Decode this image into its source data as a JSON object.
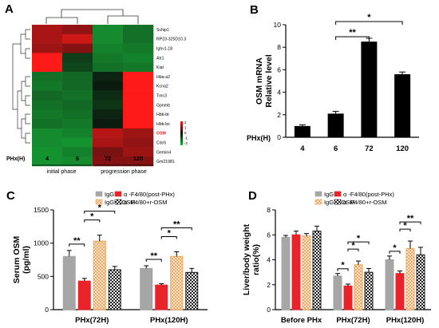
{
  "colors": {
    "igg": "#a6a6a6",
    "anti_f480": "#e8242a",
    "igg_rosm": "#f2a45a",
    "anti_f480_rosm": "#1a1a1a",
    "heat_low": "#18b43a",
    "heat_mid": "#0a0a0a",
    "heat_high": "#ff1a1a",
    "osm_label": "#e8242a"
  },
  "panels": [
    "A",
    "B",
    "C",
    "D"
  ],
  "chart_data": [
    {
      "panel": "A",
      "type": "heatmap",
      "rows": [
        "Schip1",
        "RP23-325D10.3",
        "Ighv1-18",
        "Atr1",
        "Kiat",
        "Hba-a2",
        "Kcna2",
        "Tmc3",
        "Gpnmb",
        "Hbb-bt",
        "Hbb-bs",
        "OSM",
        "Cdc6",
        "Gemin4",
        "Gm21981"
      ],
      "columns": [
        "4",
        "6",
        "72",
        "120"
      ],
      "column_axis_label": "PHx(H)",
      "groups": [
        "initial phase",
        "progression phase"
      ],
      "colorbar_ticks": [
        "2",
        "1",
        "0",
        "-1",
        "-2"
      ],
      "values": [
        [
          1.3,
          1.1,
          -1.5,
          -1.2
        ],
        [
          1.3,
          1.6,
          -1.5,
          -1.2
        ],
        [
          1.2,
          1.0,
          -1.4,
          -1.3
        ],
        [
          2.0,
          -0.6,
          -1.3,
          -1.4
        ],
        [
          2.0,
          -0.7,
          -1.2,
          -1.3
        ],
        [
          -1.2,
          -1.1,
          -0.3,
          2.0
        ],
        [
          -1.3,
          -1.1,
          -0.2,
          2.0
        ],
        [
          -1.1,
          -1.2,
          -0.4,
          2.0
        ],
        [
          -1.2,
          -1.1,
          -0.5,
          2.0
        ],
        [
          -1.3,
          -1.2,
          -0.3,
          2.0
        ],
        [
          -1.2,
          -1.3,
          -0.2,
          2.0
        ],
        [
          -1.5,
          -1.4,
          1.4,
          1.2
        ],
        [
          -1.5,
          -1.6,
          1.3,
          1.1
        ],
        [
          -1.6,
          -1.4,
          0.9,
          1.2
        ],
        [
          -1.6,
          -1.5,
          1.0,
          1.0
        ]
      ]
    },
    {
      "panel": "B",
      "type": "bar",
      "ylabel": "OSM mRNA\nRelative level",
      "xlabel": "PHx(H)",
      "categories": [
        "4",
        "6",
        "72",
        "120"
      ],
      "values": [
        1.0,
        2.1,
        8.5,
        5.6
      ],
      "errors": [
        0.1,
        0.2,
        0.3,
        0.2
      ],
      "ylim": [
        0,
        10
      ],
      "yticks": [
        "0",
        "2",
        "4",
        "6",
        "8",
        "10"
      ],
      "significance": [
        {
          "from": "6",
          "to": "72",
          "label": "**"
        },
        {
          "from": "6",
          "to": "120",
          "label": "*"
        }
      ]
    },
    {
      "panel": "C",
      "type": "bar",
      "ylabel": "Serum OSM\n(pg/ml)",
      "categories": [
        "PHx(72H)",
        "PHx(120H)"
      ],
      "series": [
        {
          "name": "IgG",
          "values": [
            800,
            620
          ],
          "errors": [
            90,
            40
          ]
        },
        {
          "name": "α -F4/80(post-PHx)",
          "values": [
            430,
            370
          ],
          "errors": [
            40,
            20
          ]
        },
        {
          "name": "IgG+r-OSM",
          "values": [
            1030,
            800
          ],
          "errors": [
            90,
            70
          ]
        },
        {
          "name": "α -F4/80+r-OSM",
          "values": [
            600,
            560
          ],
          "errors": [
            50,
            60
          ]
        }
      ],
      "ylim": [
        0,
        1500
      ],
      "yticks": [
        "0",
        "500",
        "1000",
        "1500"
      ],
      "significance": [
        {
          "group": 0,
          "from": 0,
          "to": 1,
          "label": "**"
        },
        {
          "group": 0,
          "from": 1,
          "to": 2,
          "label": "*"
        },
        {
          "group": 0,
          "from": 1,
          "to": 3,
          "label": "*"
        },
        {
          "group": 1,
          "from": 0,
          "to": 1,
          "label": "**"
        },
        {
          "group": 1,
          "from": 1,
          "to": 2,
          "label": "*"
        },
        {
          "group": 1,
          "from": 1,
          "to": 3,
          "label": "**"
        }
      ]
    },
    {
      "panel": "D",
      "type": "bar",
      "ylabel": "Liver/body weight\nratio(%)",
      "categories": [
        "Before PHx",
        "PHx(72H)",
        "PHx(120H)"
      ],
      "series": [
        {
          "name": "IgG",
          "values": [
            5.8,
            2.7,
            4.0
          ],
          "errors": [
            0.15,
            0.2,
            0.3
          ]
        },
        {
          "name": "α -F4/80(post-PHx)",
          "values": [
            6.0,
            1.9,
            2.9
          ],
          "errors": [
            0.3,
            0.15,
            0.2
          ]
        },
        {
          "name": "IgG+r-OSM",
          "values": [
            5.9,
            3.6,
            4.9
          ],
          "errors": [
            0.2,
            0.3,
            0.6
          ]
        },
        {
          "name": "α -F4/80+r-OSM",
          "values": [
            6.3,
            3.0,
            4.4
          ],
          "errors": [
            0.4,
            0.3,
            0.6
          ]
        }
      ],
      "ylim": [
        0,
        8
      ],
      "yticks": [
        "0",
        "2",
        "4",
        "6",
        "8"
      ],
      "significance": [
        {
          "group": 1,
          "from": 0,
          "to": 1,
          "label": "*"
        },
        {
          "group": 1,
          "from": 1,
          "to": 2,
          "label": "*"
        },
        {
          "group": 1,
          "from": 1,
          "to": 3,
          "label": "*"
        },
        {
          "group": 2,
          "from": 0,
          "to": 1,
          "label": "*"
        },
        {
          "group": 2,
          "from": 1,
          "to": 2,
          "label": "*"
        },
        {
          "group": 2,
          "from": 1,
          "to": 3,
          "label": "**"
        }
      ]
    }
  ]
}
